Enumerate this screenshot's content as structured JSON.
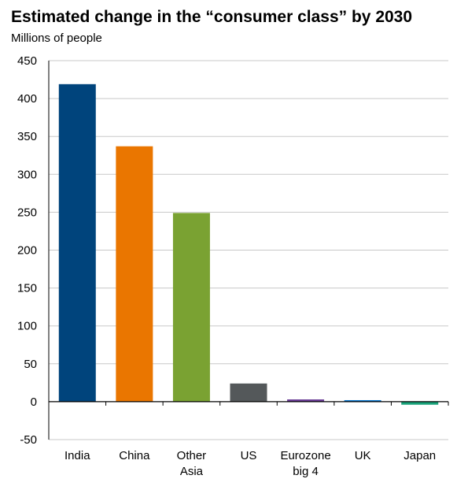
{
  "chart_data": {
    "type": "bar",
    "title": "Estimated change in the “consumer class” by 2030",
    "subtitle": "Millions of people",
    "xlabel": "",
    "ylabel": "",
    "ylim": [
      -50,
      450
    ],
    "yticks": [
      -50,
      0,
      50,
      100,
      150,
      200,
      250,
      300,
      350,
      400,
      450
    ],
    "grid": true,
    "legend": "none",
    "categories": [
      {
        "label": [
          "India"
        ],
        "value": 419,
        "color": "#00447c"
      },
      {
        "label": [
          "China"
        ],
        "value": 337,
        "color": "#ea7600"
      },
      {
        "label": [
          "Other",
          "Asia"
        ],
        "value": 249,
        "color": "#7aa232"
      },
      {
        "label": [
          "US"
        ],
        "value": 24,
        "color": "#54585a"
      },
      {
        "label": [
          "Eurozone",
          "big 4"
        ],
        "value": 3,
        "color": "#6b3d97"
      },
      {
        "label": [
          "UK"
        ],
        "value": 2,
        "color": "#0072ce"
      },
      {
        "label": [
          "Japan"
        ],
        "value": -4,
        "color": "#1aa37a"
      }
    ]
  }
}
